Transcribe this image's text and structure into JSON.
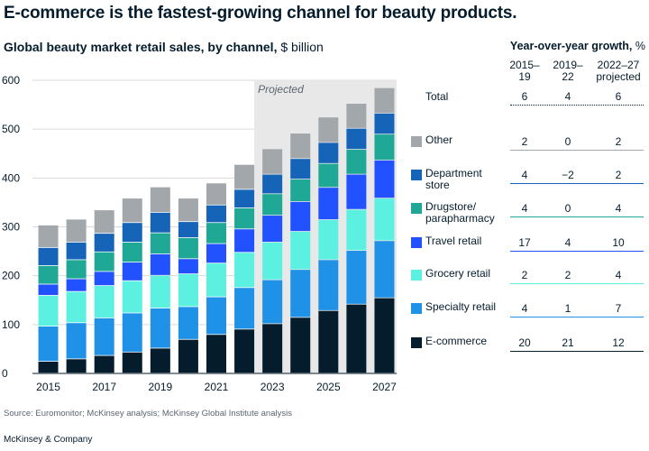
{
  "headline": "E-commerce is the fastest-growing channel for beauty products.",
  "subtitle_bold": "Global beauty market retail sales, by channel,",
  "subtitle_unit": "$ billion",
  "growth_title_bold": "Year-over-year growth,",
  "growth_title_unit": "%",
  "periods": [
    {
      "line1": "2015–",
      "line2": "19"
    },
    {
      "line1": "2019–",
      "line2": "22"
    },
    {
      "line1": "2022–27",
      "line2": "projected"
    }
  ],
  "projected_label": "Projected",
  "source": "Source: Euromonitor; McKinsey analysis; McKinsey Global Institute analysis",
  "brand": "McKinsey & Company",
  "growth_rows": [
    {
      "label": "Total",
      "values": [
        "6",
        "4",
        "6"
      ]
    },
    {
      "label": "Other",
      "values": [
        "2",
        "0",
        "2"
      ]
    },
    {
      "label": "Department store",
      "values": [
        "4",
        "−2",
        "2"
      ]
    },
    {
      "label": "Drugstore/ parapharmacy",
      "values": [
        "4",
        "0",
        "4"
      ]
    },
    {
      "label": "Travel retail",
      "values": [
        "17",
        "4",
        "10"
      ]
    },
    {
      "label": "Grocery retail",
      "values": [
        "2",
        "2",
        "4"
      ]
    },
    {
      "label": "Specialty retail",
      "values": [
        "4",
        "1",
        "7"
      ]
    },
    {
      "label": "E-commerce",
      "values": [
        "20",
        "21",
        "12"
      ]
    }
  ],
  "chart_data": {
    "type": "bar",
    "stacked": true,
    "categories": [
      "2015",
      "2016",
      "2017",
      "2018",
      "2019",
      "2020",
      "2021",
      "2022",
      "2023",
      "2024",
      "2025",
      "2026",
      "2027"
    ],
    "x_tick_labels": [
      "2015",
      "2017",
      "2019",
      "2021",
      "2023",
      "2025",
      "2027"
    ],
    "ylim": [
      0,
      600
    ],
    "y_ticks": [
      "0",
      "100",
      "200",
      "300",
      "400",
      "500",
      "600"
    ],
    "projected_from": "2023",
    "series": [
      {
        "name": "E-commerce",
        "color": "#051c2c",
        "values": [
          24,
          29,
          36,
          43,
          51,
          69,
          79,
          90,
          101,
          114,
          128,
          141,
          154
        ]
      },
      {
        "name": "Specialty retail",
        "color": "#1f91e6",
        "values": [
          72,
          74,
          77,
          80,
          82,
          67,
          77,
          85,
          90,
          98,
          104,
          110,
          117
        ]
      },
      {
        "name": "Grocery retail",
        "color": "#5cf0e0",
        "values": [
          63,
          64,
          66,
          66,
          67,
          67,
          69,
          72,
          77,
          78,
          82,
          84,
          87
        ]
      },
      {
        "name": "Travel retail",
        "color": "#2251ff",
        "values": [
          23,
          26,
          29,
          38,
          44,
          31,
          40,
          48,
          55,
          61,
          66,
          72,
          78
        ]
      },
      {
        "name": "Drugstore/ parapharmacy",
        "color": "#1fa896",
        "values": [
          38,
          39,
          40,
          41,
          43,
          43,
          43,
          43,
          44,
          46,
          49,
          51,
          53
        ]
      },
      {
        "name": "Department store",
        "color": "#1564b8",
        "values": [
          37,
          36,
          38,
          40,
          42,
          33,
          36,
          38,
          40,
          42,
          43,
          43,
          43
        ]
      },
      {
        "name": "Other",
        "color": "#a2a7ab",
        "values": [
          46,
          47,
          48,
          50,
          52,
          48,
          45,
          51,
          52,
          52,
          52,
          51,
          52
        ]
      }
    ]
  }
}
